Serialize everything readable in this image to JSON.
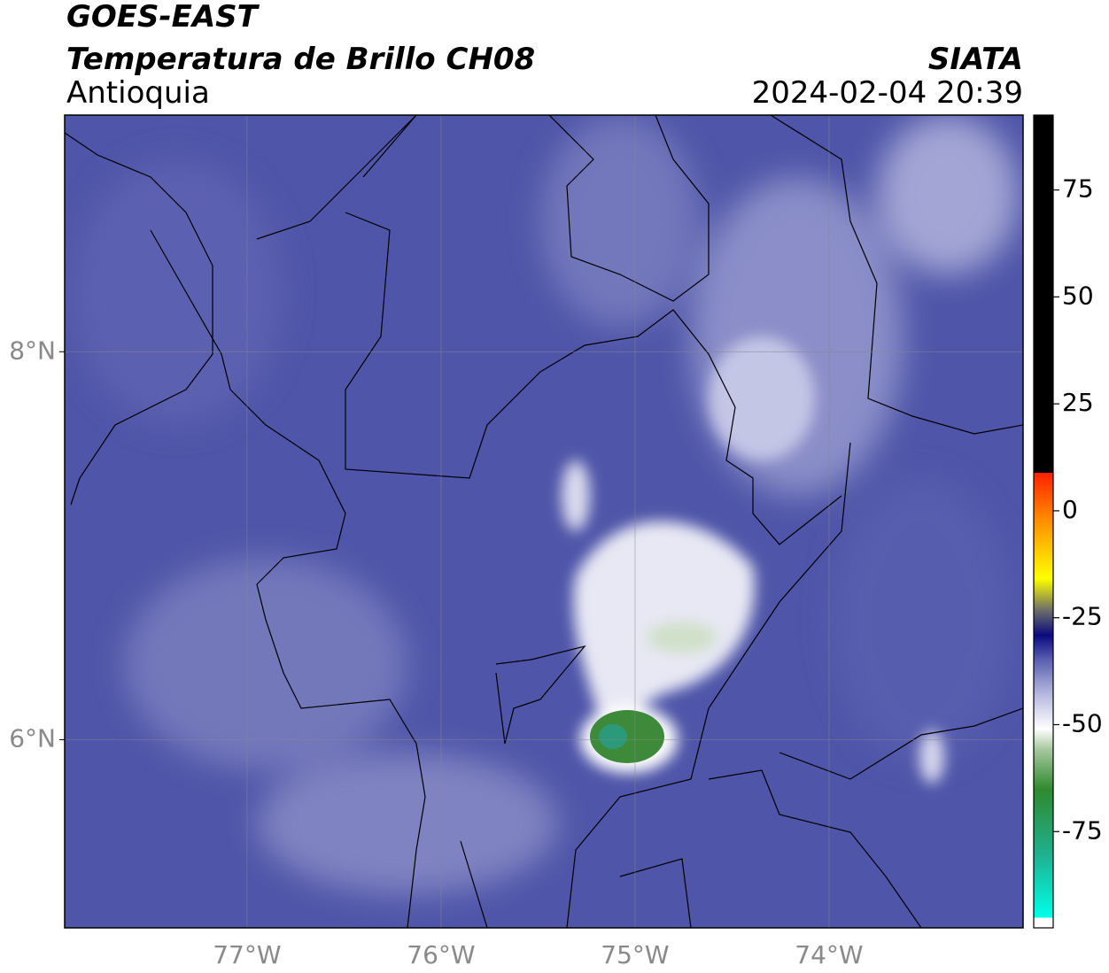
{
  "header": {
    "title": "GOES-EAST",
    "subtitle": "Temperatura de Brillo CH08",
    "region": "Antioquia",
    "source": "SIATA",
    "datetime": "2024-02-04 20:39"
  },
  "map": {
    "xlim": [
      -77.94,
      -73.0
    ],
    "ylim": [
      5.03,
      9.22
    ],
    "xticks": [
      {
        "value": -77,
        "label": "77°W"
      },
      {
        "value": -76,
        "label": "76°W"
      },
      {
        "value": -75,
        "label": "75°W"
      },
      {
        "value": -74,
        "label": "74°W"
      }
    ],
    "yticks": [
      {
        "value": 8,
        "label": "8°N"
      },
      {
        "value": 6,
        "label": "6°N"
      }
    ],
    "grid": true
  },
  "colorbar": {
    "lim": [
      -97.5,
      92.5
    ],
    "ticks": [
      75,
      50,
      25,
      0,
      -25,
      -50,
      -75
    ]
  }
}
